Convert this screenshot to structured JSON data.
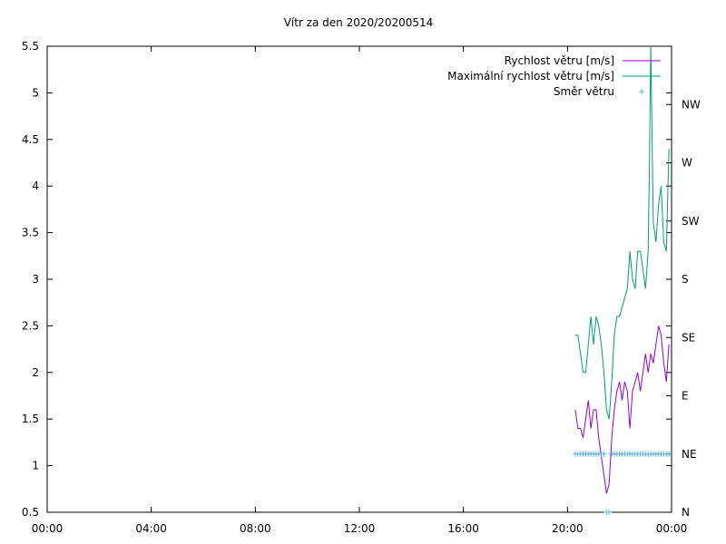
{
  "chart_data": {
    "type": "line",
    "title": "Vítr za den 2020/20200514",
    "xlabel": "",
    "ylabel": "",
    "x_ticks": [
      "00:00",
      "04:00",
      "08:00",
      "12:00",
      "16:00",
      "20:00",
      "00:00"
    ],
    "xlim_hours": [
      0,
      24
    ],
    "ylim": [
      0.5,
      5.5
    ],
    "y_ticks": [
      "0.5",
      "1",
      "1.5",
      "2",
      "2.5",
      "3",
      "3.5",
      "4",
      "4.5",
      "5",
      "5.5"
    ],
    "y2_ticks": [
      "N",
      "NE",
      "E",
      "SE",
      "S",
      "SW",
      "W",
      "NW"
    ],
    "y2lim_deg": [
      0,
      360
    ],
    "grid": false,
    "legend_position": "top-right",
    "colors": {
      "speed": "#9400d3",
      "max_speed": "#009e73",
      "direction": "#56b4e9"
    },
    "series": [
      {
        "name": "Rychlost větru [m/s]",
        "kind": "line",
        "color": "#9400d3",
        "x": [
          20.3,
          20.4,
          20.5,
          20.6,
          20.7,
          20.8,
          20.9,
          21.0,
          21.1,
          21.2,
          21.3,
          21.4,
          21.5,
          21.6,
          21.7,
          21.8,
          21.9,
          22.0,
          22.1,
          22.2,
          22.3,
          22.4,
          22.5,
          22.6,
          22.7,
          22.8,
          22.9,
          23.0,
          23.1,
          23.2,
          23.3,
          23.4,
          23.5,
          23.6,
          23.7,
          23.8,
          23.9
        ],
        "y": [
          1.6,
          1.4,
          1.4,
          1.3,
          1.5,
          1.7,
          1.4,
          1.6,
          1.6,
          1.3,
          1.1,
          0.9,
          0.7,
          0.8,
          1.3,
          1.6,
          1.8,
          1.9,
          1.7,
          1.9,
          1.8,
          1.4,
          1.8,
          1.9,
          2.0,
          1.8,
          2.0,
          2.2,
          2.0,
          2.2,
          2.1,
          2.3,
          2.5,
          2.4,
          2.1,
          1.9,
          2.3
        ]
      },
      {
        "name": "Maximální rychlost větru [m/s]",
        "kind": "line",
        "color": "#009e73",
        "x": [
          20.3,
          20.4,
          20.5,
          20.6,
          20.7,
          20.8,
          20.9,
          21.0,
          21.1,
          21.2,
          21.3,
          21.4,
          21.5,
          21.6,
          21.7,
          21.8,
          21.9,
          22.0,
          22.1,
          22.2,
          22.3,
          22.4,
          22.5,
          22.6,
          22.7,
          22.8,
          22.9,
          23.0,
          23.1,
          23.15,
          23.2,
          23.3,
          23.4,
          23.5,
          23.6,
          23.7,
          23.8,
          23.9
        ],
        "y": [
          2.4,
          2.4,
          2.2,
          2.0,
          2.0,
          2.3,
          2.6,
          2.3,
          2.6,
          2.5,
          2.3,
          2.0,
          1.6,
          1.5,
          1.9,
          2.4,
          2.6,
          2.6,
          2.7,
          2.8,
          2.9,
          3.3,
          3.0,
          2.9,
          3.3,
          3.3,
          3.1,
          2.9,
          3.3,
          4.2,
          5.5,
          3.6,
          3.4,
          3.8,
          4.0,
          3.4,
          3.3,
          4.4
        ]
      },
      {
        "name": "Směr větru",
        "kind": "points",
        "color": "#56b4e9",
        "axis": "y2",
        "x": [
          20.3,
          20.4,
          20.5,
          20.6,
          20.7,
          20.8,
          20.9,
          21.0,
          21.1,
          21.2,
          21.3,
          21.4,
          21.5,
          21.6,
          21.7,
          21.8,
          21.9,
          22.0,
          22.1,
          22.2,
          22.3,
          22.4,
          22.5,
          22.6,
          22.7,
          22.8,
          22.9,
          23.0,
          23.1,
          23.2,
          23.3,
          23.4,
          23.5,
          23.6,
          23.7,
          23.8,
          23.9
        ],
        "y": [
          45,
          45,
          45,
          45,
          45,
          45,
          45,
          45,
          45,
          45,
          45,
          45,
          0,
          0,
          45,
          45,
          45,
          45,
          45,
          45,
          45,
          45,
          45,
          45,
          45,
          45,
          45,
          45,
          45,
          45,
          45,
          45,
          45,
          45,
          45,
          45,
          45
        ]
      }
    ]
  }
}
